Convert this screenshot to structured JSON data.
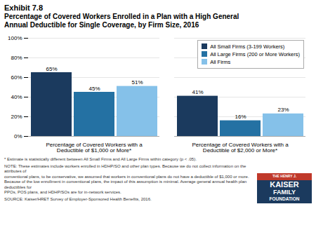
{
  "chart_data": {
    "type": "bar",
    "title": "Exhibit 7.8",
    "subtitle": "Percentage of Covered Workers Enrolled in a Plan with a High General\nAnnual Deductible for Single Coverage, by Firm Size, 2016",
    "categories": [
      "Percentage of Covered Workers with a\nDeductible of $1,000 or More*",
      "Percentage of Covered Workers with a\nDeductible of $2,000 or More*"
    ],
    "series": [
      {
        "name": "All Small Firms (3-199 Workers)",
        "color": "#1b3a5e",
        "values": [
          65,
          41
        ],
        "value_labels": [
          "65%",
          "41%"
        ]
      },
      {
        "name": "All Large Firms (200 or More Workers)",
        "color": "#2471a3",
        "values": [
          45,
          16
        ],
        "value_labels": [
          "45%",
          "16%"
        ]
      },
      {
        "name": "All Firms",
        "color": "#85c1e9",
        "values": [
          51,
          23
        ],
        "value_labels": [
          "51%",
          "23%"
        ]
      }
    ],
    "ylim": [
      0,
      100
    ],
    "yticks": [
      {
        "value": 0,
        "label": "0%"
      },
      {
        "value": 20,
        "label": "20%"
      },
      {
        "value": 40,
        "label": "40%"
      },
      {
        "value": 60,
        "label": "60%"
      },
      {
        "value": 80,
        "label": "80%"
      },
      {
        "value": 100,
        "label": "100%"
      }
    ],
    "grid": true,
    "legend": "upper right",
    "data_labels": true,
    "annotations": [
      "* Estimate is statistically different between All Small Firms and All Large Firms within category (p < .05).",
      "NOTE:  These estimates include workers enrolled in HDHP/SO and other plan types. Because we do not collect information on the attributes of\nconventional plans, to be conservative, we assumed that workers in conventional plans do not have a deductible of $1,000 or more.\nBecause of the low enrollment in conventional plans, the impact of this assumption is minimal. Average general annual health plan deductibles for\nPPOs, POS plans, and HDHP/SOs are for in-network services.",
      "SOURCE:  Kaiser/HRET Survey of Employer-Sponsored Health Benefits, 2016.",
      "THE HENRY J.",
      "KAISER",
      "FAMILY",
      "FOUNDATION"
    ]
  }
}
